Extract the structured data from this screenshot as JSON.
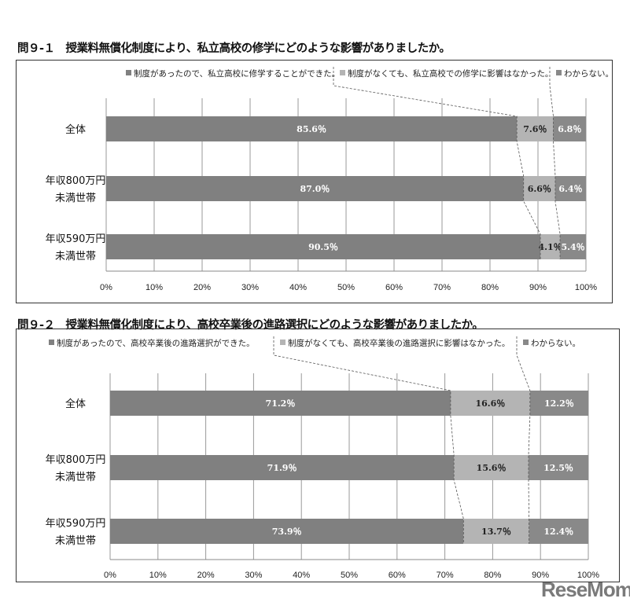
{
  "chart_data": [
    {
      "type": "bar",
      "orientation": "horizontal-stacked-100",
      "title": "問９-１　授業料無償化制度により、私立高校の修学にどのような影響がありましたか。",
      "categories": [
        "全体",
        "年収800万円\n未満世帯",
        "年収590万円\n未満世帯"
      ],
      "series": [
        {
          "name": "制度があったので、私立高校に修学することができた。",
          "values": [
            85.6,
            87.0,
            90.5
          ],
          "labels": [
            "85.6％",
            "87.0％",
            "90.5％"
          ],
          "color": "#808080"
        },
        {
          "name": "制度がなくても、私立高校での修学に影響はなかった。",
          "values": [
            7.6,
            6.6,
            4.1
          ],
          "labels": [
            "7.6％",
            "6.6％",
            "4.1％"
          ],
          "color": "#b4b4b4"
        },
        {
          "name": "わからない。",
          "values": [
            6.8,
            6.4,
            5.4
          ],
          "labels": [
            "6.8％",
            "6.4％",
            "5.4％"
          ],
          "color": "#898989"
        }
      ],
      "xticks": [
        "0%",
        "10%",
        "20%",
        "30%",
        "40%",
        "50%",
        "60%",
        "70%",
        "80%",
        "90%",
        "100%"
      ],
      "xlim": [
        0,
        100
      ],
      "grid": true,
      "legend": "top-right"
    },
    {
      "type": "bar",
      "orientation": "horizontal-stacked-100",
      "title": "問９-２　授業料無償化制度により、高校卒業後の進路選択にどのような影響がありましたか。",
      "categories": [
        "全体",
        "年収800万円\n未満世帯",
        "年収590万円\n未満世帯"
      ],
      "series": [
        {
          "name": "制度があったので、高校卒業後の進路選択ができた。",
          "values": [
            71.2,
            71.9,
            73.9
          ],
          "labels": [
            "71.2％",
            "71.9％",
            "73.9％"
          ],
          "color": "#808080"
        },
        {
          "name": "制度がなくても、高校卒業後の進路選択に影響はなかった。",
          "values": [
            16.6,
            15.6,
            13.7
          ],
          "labels": [
            "16.6％",
            "15.6％",
            "13.7％"
          ],
          "color": "#b4b4b4"
        },
        {
          "name": "わからない。",
          "values": [
            12.2,
            12.5,
            12.4
          ],
          "labels": [
            "12.2％",
            "12.5％",
            "12.4％"
          ],
          "color": "#898989"
        }
      ],
      "xticks": [
        "0%",
        "10%",
        "20%",
        "30%",
        "40%",
        "50%",
        "60%",
        "70%",
        "80%",
        "90%",
        "100%"
      ],
      "xlim": [
        0,
        100
      ],
      "grid": true,
      "legend": "top"
    }
  ],
  "watermark": "ReseMom"
}
